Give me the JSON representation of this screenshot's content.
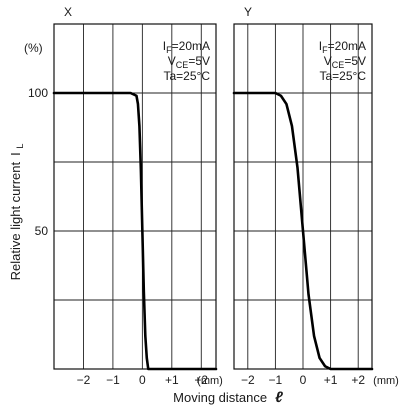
{
  "chart_data": [
    {
      "type": "line",
      "panel_label": "X",
      "y_unit": "(%)",
      "ylabel": "Relative light current",
      "ylabel_symbol": "IL",
      "xlabel": "Moving distance",
      "xlabel_symbol": "ℓ",
      "x_unit": "(mm)",
      "xlim": [
        -3.0,
        2.5
      ],
      "ylim": [
        0,
        125
      ],
      "x_ticks": [
        -2,
        -1,
        0,
        1,
        2
      ],
      "x_tick_labels": [
        "−2",
        "−1",
        "0",
        "+1",
        "+2"
      ],
      "y_ticks": [
        50,
        100
      ],
      "y_tick_labels": [
        "50",
        "100"
      ],
      "grid": true,
      "conditions": [
        "IF=20mA",
        "VCE=5V",
        "Ta=25°C"
      ],
      "series": [
        {
          "x": [
            -3.0,
            -0.4,
            -0.2,
            -0.15,
            -0.1,
            -0.05,
            0.0,
            0.05,
            0.1,
            0.15,
            0.2,
            2.5
          ],
          "y": [
            100,
            100,
            99,
            96,
            88,
            72,
            50,
            28,
            12,
            4,
            0,
            0
          ]
        }
      ]
    },
    {
      "type": "line",
      "panel_label": "Y",
      "y_unit": "",
      "ylabel": "",
      "xlabel": "",
      "x_unit": "(mm)",
      "xlim": [
        -2.5,
        2.5
      ],
      "ylim": [
        0,
        125
      ],
      "x_ticks": [
        -2,
        -1,
        0,
        1,
        2
      ],
      "x_tick_labels": [
        "−2",
        "−1",
        "0",
        "+1",
        "+2"
      ],
      "grid": true,
      "conditions": [
        "IF=20mA",
        "VCE=5V",
        "Ta=25°C"
      ],
      "series": [
        {
          "x": [
            -2.5,
            -1.0,
            -0.8,
            -0.6,
            -0.4,
            -0.2,
            0.0,
            0.2,
            0.4,
            0.6,
            0.8,
            1.0,
            2.5
          ],
          "y": [
            100,
            100,
            99,
            96,
            88,
            73,
            50,
            27,
            12,
            4,
            1,
            0,
            0
          ]
        }
      ]
    }
  ]
}
